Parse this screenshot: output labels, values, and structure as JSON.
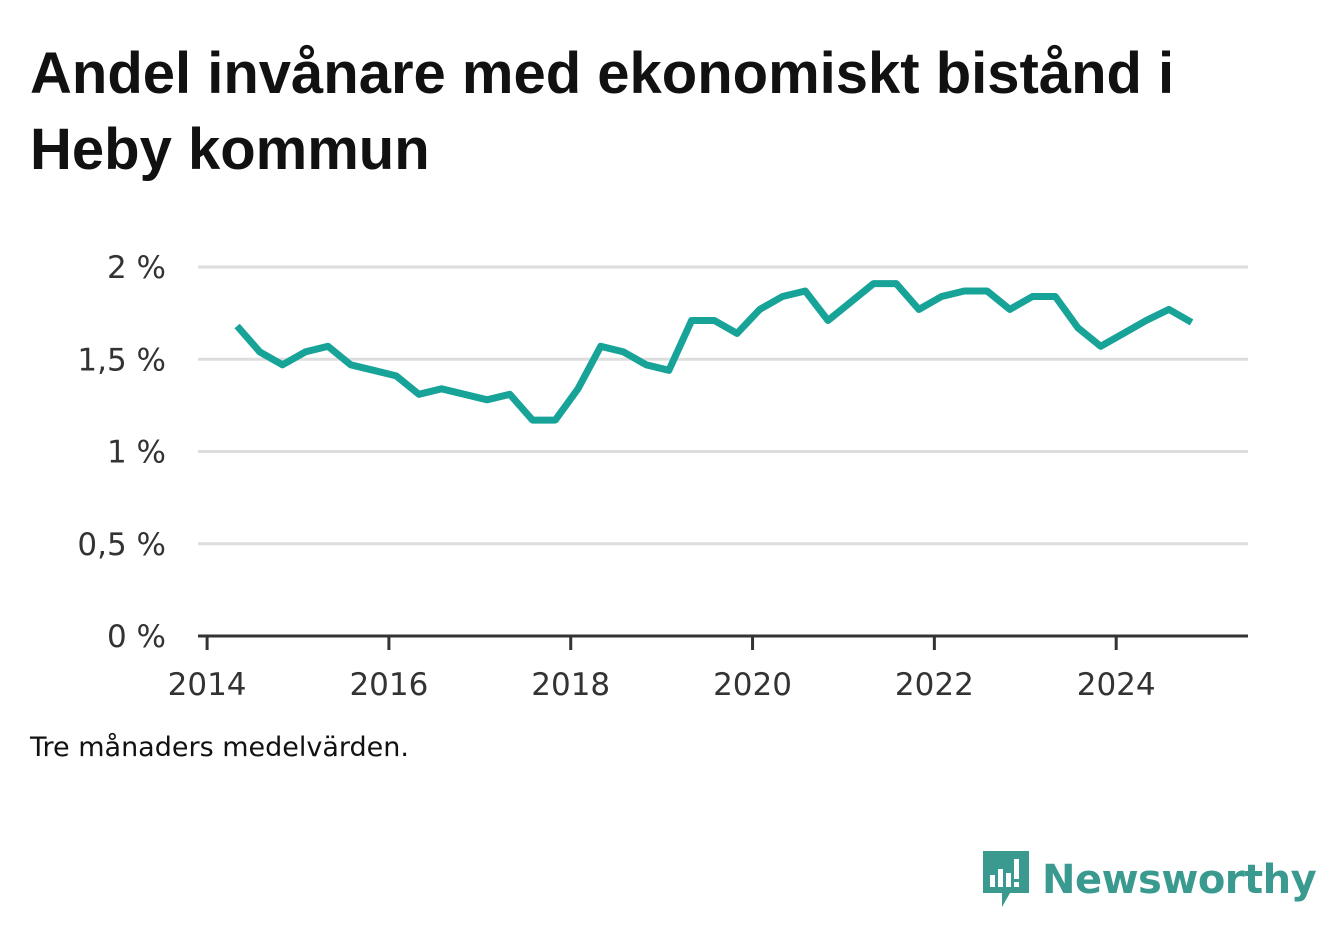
{
  "title": "Andel invånare med ekonomiskt bistånd i Heby kommun",
  "note": "Tre månaders medelvärden.",
  "brand": {
    "name": "Newsworthy",
    "icon": "newsworthy-logo-icon",
    "color": "#3a9a8f"
  },
  "chart_data": {
    "type": "line",
    "title": "Andel invånare med ekonomiskt bistånd i Heby kommun",
    "xlabel": "",
    "ylabel": "",
    "xlim": [
      2013.9,
      2025.45
    ],
    "ylim": [
      0,
      2
    ],
    "x_ticks": [
      2014,
      2016,
      2018,
      2020,
      2022,
      2024
    ],
    "y_ticks": [
      0,
      0.5,
      1,
      1.5,
      2
    ],
    "y_tick_labels": [
      "0 %",
      "0,5 %",
      "1 %",
      "1,5 %",
      "2 %"
    ],
    "grid": "horizontal",
    "legend": "none",
    "line_color": "#17a398",
    "series": [
      {
        "x": [
          2014.33,
          2014.58,
          2014.83,
          2015.08,
          2015.33,
          2015.58,
          2015.83,
          2016.08,
          2016.33,
          2016.58,
          2016.83,
          2017.08,
          2017.33,
          2017.58,
          2017.83,
          2018.08,
          2018.33,
          2018.58,
          2018.83,
          2019.08,
          2019.33,
          2019.58,
          2019.83,
          2020.08,
          2020.33,
          2020.58,
          2020.83,
          2021.08,
          2021.33,
          2021.58,
          2021.83,
          2022.08,
          2022.33,
          2022.58,
          2022.83,
          2023.08,
          2023.33,
          2023.58,
          2023.83,
          2024.08,
          2024.33,
          2024.58,
          2024.83
        ],
        "values": [
          1.68,
          1.54,
          1.47,
          1.54,
          1.57,
          1.47,
          1.44,
          1.41,
          1.31,
          1.34,
          1.31,
          1.28,
          1.31,
          1.17,
          1.17,
          1.34,
          1.57,
          1.54,
          1.47,
          1.44,
          1.71,
          1.71,
          1.64,
          1.77,
          1.84,
          1.87,
          1.71,
          1.81,
          1.91,
          1.91,
          1.77,
          1.84,
          1.87,
          1.87,
          1.77,
          1.84,
          1.84,
          1.67,
          1.57,
          1.64,
          1.71,
          1.77,
          1.7
        ]
      }
    ]
  }
}
